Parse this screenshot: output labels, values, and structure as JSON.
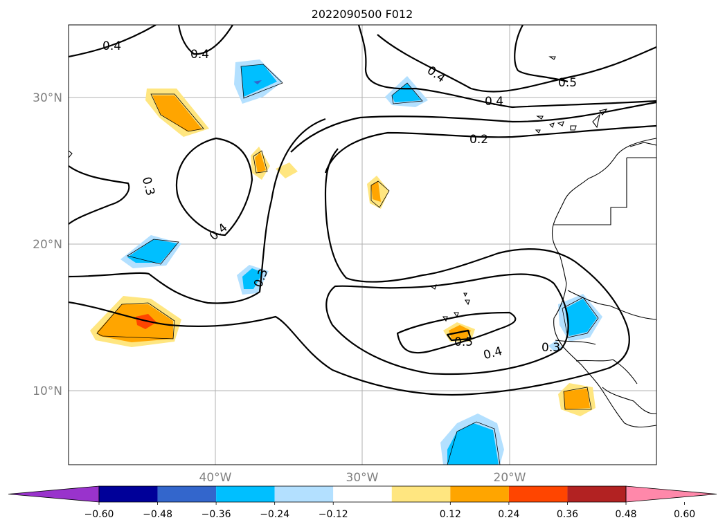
{
  "title": "2022090500 F012",
  "map": {
    "lat_labels": [
      "30°N",
      "20°N",
      "10°N"
    ],
    "lon_labels": [
      "40°W",
      "30°W",
      "20°W"
    ],
    "lat_range": [
      5,
      35
    ],
    "lon_range": [
      -50,
      -10
    ],
    "grid": true
  },
  "contour_labels": [
    "0.4",
    "0.4",
    "0.4",
    "0.5",
    "0.4",
    "0.2",
    "0.3",
    "0.4",
    "0.3",
    "0.5",
    "0.4",
    "0.3"
  ],
  "colorbar": {
    "ticks": [
      "−0.60",
      "−0.48",
      "−0.36",
      "−0.24",
      "−0.12",
      "0.12",
      "0.24",
      "0.36",
      "0.48",
      "0.60"
    ],
    "colors": {
      "below": "#9933cc",
      "bins": [
        "#000099",
        "#3366cc",
        "#00bfff",
        "#b3e0ff",
        "#ffffff",
        "#ffe680",
        "#ffa500",
        "#ff4500",
        "#b22222"
      ],
      "above": "#ff88aa"
    }
  }
}
